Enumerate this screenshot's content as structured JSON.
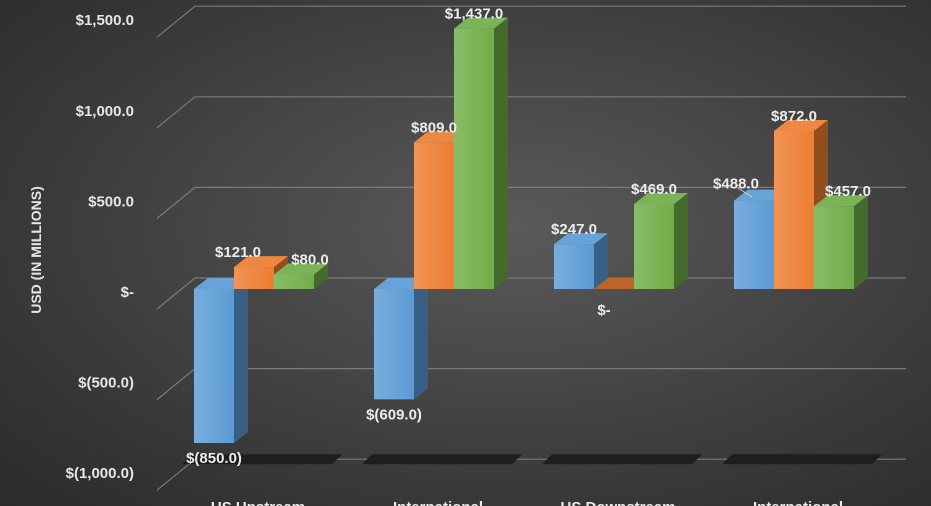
{
  "chart_data": {
    "type": "bar",
    "style": "3d-clustered-column",
    "categories": [
      "US Upstream",
      "International",
      "US Downstream",
      "International"
    ],
    "series": [
      {
        "color": "#5b9bd5",
        "values": [
          -850.0,
          -609.0,
          247.0,
          488.0
        ]
      },
      {
        "color": "#ed7d31",
        "values": [
          121.0,
          809.0,
          0,
          872.0
        ]
      },
      {
        "color": "#70ad47",
        "values": [
          80.0,
          1437.0,
          469.0,
          457.0
        ]
      }
    ],
    "data_labels": [
      [
        "$(850.0)",
        "$(609.0)",
        "$247.0",
        "$488.0"
      ],
      [
        "$121.0",
        "$809.0",
        "$-",
        "$872.0"
      ],
      [
        "$80.0",
        "$1,437.0",
        "$469.0",
        "$457.0"
      ]
    ],
    "ylabel": "USD (IN MILLIONS)",
    "ylim": [
      -1000,
      1500
    ],
    "yticks": [
      1500,
      1000,
      500,
      0,
      -500,
      -1000
    ],
    "ytick_labels": [
      "$1,500.0",
      "$1,000.0",
      "$500.0",
      "$-",
      "$(500.0)",
      "$(1,000.0)"
    ],
    "grid": true,
    "legend": "none"
  }
}
